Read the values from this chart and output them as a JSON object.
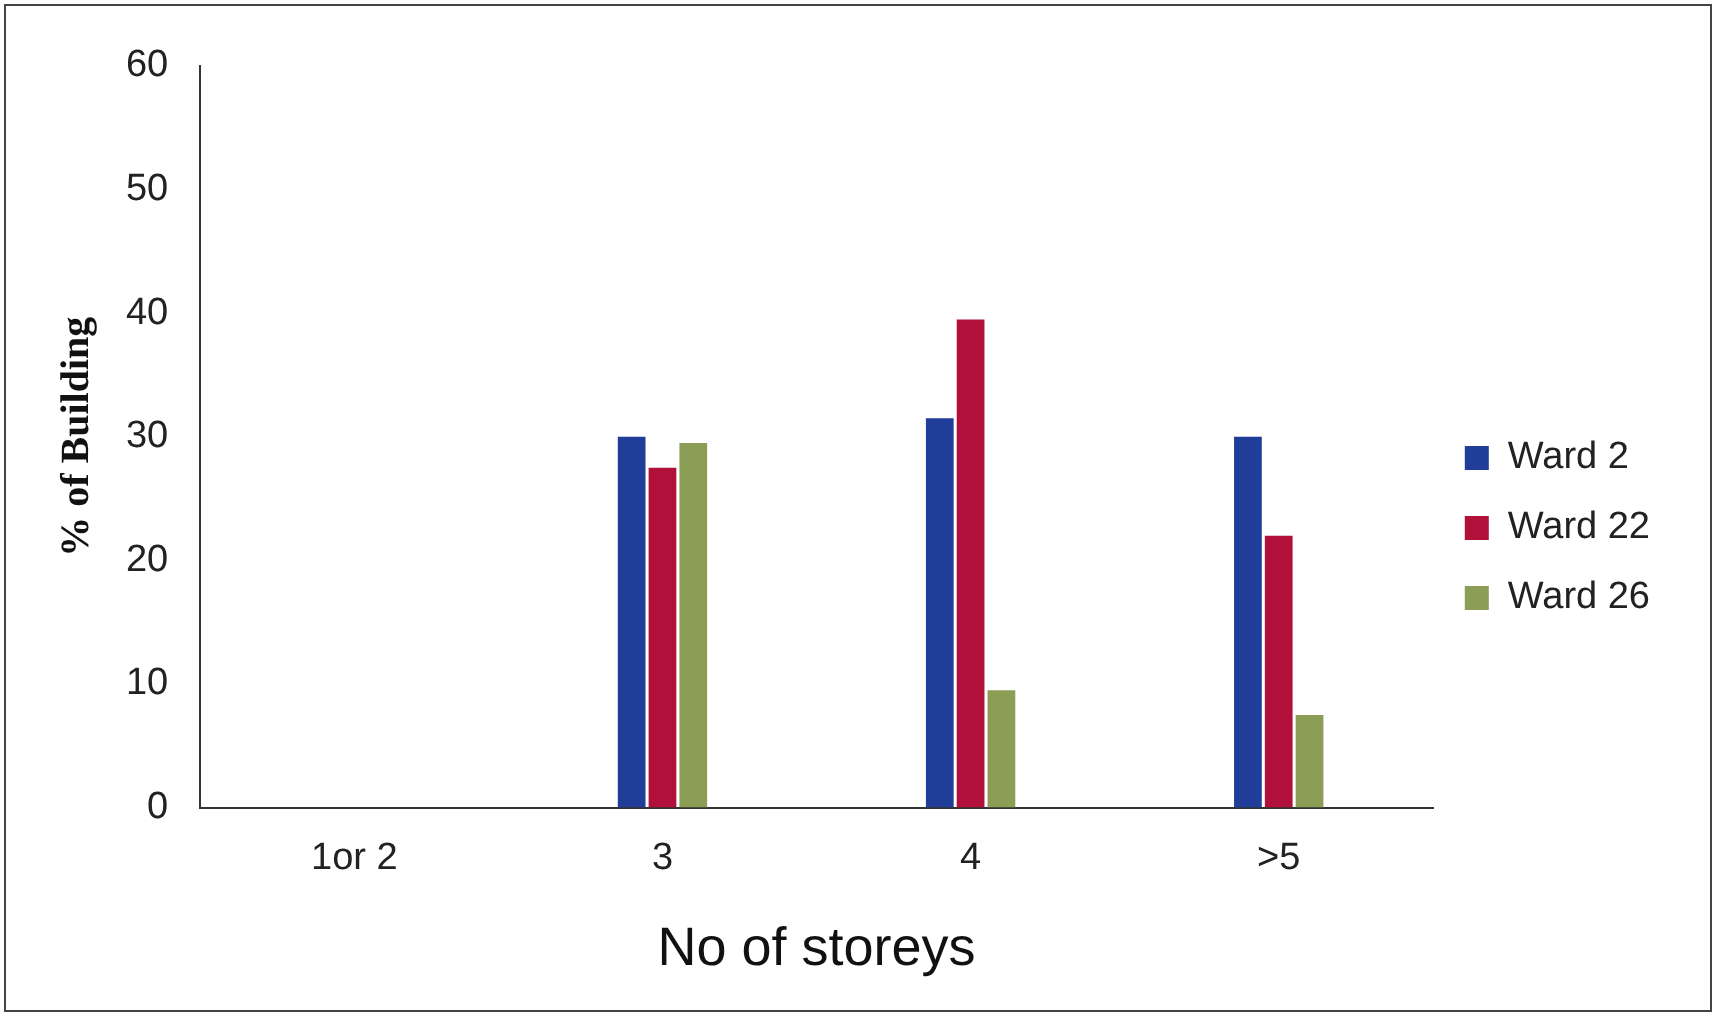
{
  "chart_data": {
    "type": "bar",
    "categories": [
      "1or 2",
      "3",
      "4",
      ">5"
    ],
    "series": [
      {
        "name": "Ward 2",
        "color": "#1f3d99",
        "values": [
          0,
          30,
          31.5,
          30
        ]
      },
      {
        "name": "Ward 22",
        "color": "#b0103a",
        "values": [
          0,
          27.5,
          39.5,
          22
        ]
      },
      {
        "name": "Ward 26",
        "color": "#8c9e55",
        "values": [
          0,
          29.5,
          9.5,
          7.5
        ]
      }
    ],
    "xlabel": "No of storeys",
    "ylabel": "% of Building",
    "ylim": [
      0,
      60
    ],
    "yticks": [
      0,
      10,
      20,
      30,
      40,
      50,
      60
    ],
    "grid": false,
    "legend": "right"
  }
}
